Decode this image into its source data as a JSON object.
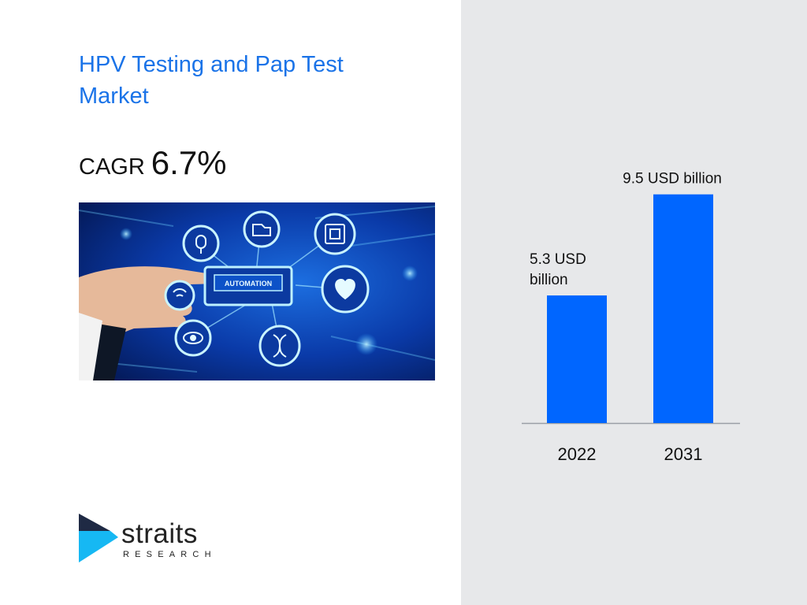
{
  "slide": {
    "title": "HPV Testing and Pap Test Market",
    "cagr_label": "CAGR",
    "cagr_value": "6.7%"
  },
  "hero_image": {
    "button_text": "AUTOMATION"
  },
  "logo": {
    "word": "straits",
    "sub": "RESEARCH"
  },
  "colors": {
    "title": "#1a73e8",
    "bar": "#0066ff",
    "panel_bg": "#e7e8ea",
    "logo_dark": "#1f2a44",
    "logo_cyan": "#16b8f3"
  },
  "chart_data": {
    "type": "bar",
    "categories": [
      "2022",
      "2031"
    ],
    "values": [
      5.3,
      9.5
    ],
    "data_labels": [
      [
        "5.3 USD",
        "billion"
      ],
      [
        "9.5  USD billion"
      ]
    ],
    "title": "",
    "xlabel": "",
    "ylabel": "",
    "ylim": [
      0,
      10.8
    ],
    "grid": false,
    "legend": "none",
    "bar_color": "#0066ff"
  }
}
